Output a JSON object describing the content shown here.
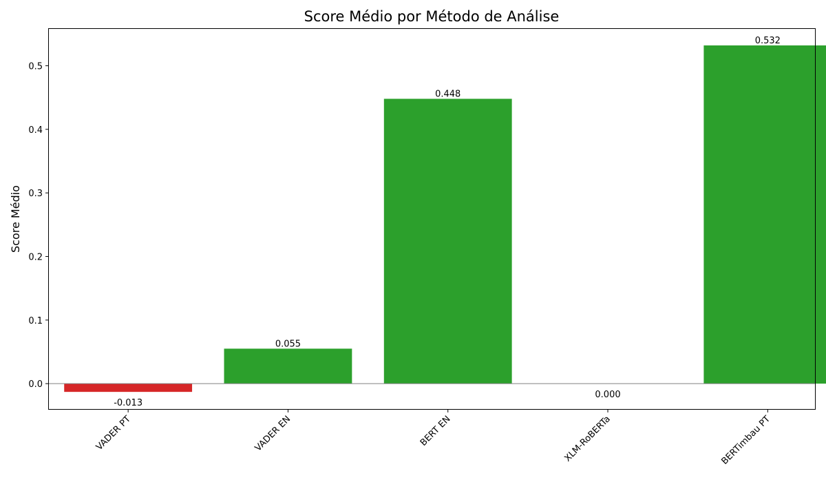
{
  "chart_data": {
    "type": "bar",
    "title": "Score Médio por Método de Análise",
    "xlabel": "",
    "ylabel": "Score Médio",
    "categories": [
      "VADER PT",
      "VADER EN",
      "BERT EN",
      "XLM-RoBERTa",
      "BERTimbau PT"
    ],
    "values": [
      -0.013,
      0.055,
      0.448,
      0.0,
      0.532
    ],
    "data_labels": [
      "-0.013",
      "0.055",
      "0.448",
      "0.000",
      "0.532"
    ],
    "yticks": [
      0.0,
      0.1,
      0.2,
      0.3,
      0.4,
      0.5
    ],
    "ytick_labels": [
      "0.0",
      "0.1",
      "0.2",
      "0.3",
      "0.4",
      "0.5"
    ],
    "ylim": [
      -0.041,
      0.559
    ],
    "grid": false,
    "zero_line": true,
    "colors": {
      "positive": "#2ca02c",
      "negative": "#d62728",
      "zero_line": "#808080"
    }
  }
}
